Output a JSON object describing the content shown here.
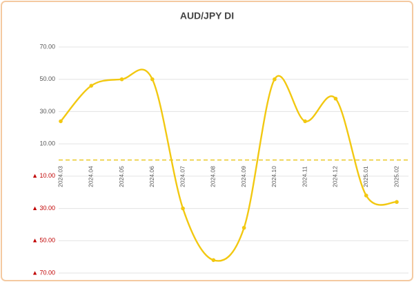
{
  "chart_data": {
    "type": "line",
    "title": "AUD/JPY DI",
    "categories": [
      "2024.03",
      "2024.04",
      "2024.05",
      "2024.06",
      "2024.07",
      "2024.08",
      "2024.09",
      "2024.10",
      "2024.11",
      "2024.12",
      "2025.01",
      "2025.02"
    ],
    "series": [
      {
        "name": "AUD/JPY DI",
        "color": "#f2c811",
        "values": [
          24,
          46,
          50,
          50,
          -30,
          -62,
          -42,
          50,
          24,
          38,
          -22,
          -26
        ]
      }
    ],
    "ylim": [
      -70,
      70
    ],
    "yticks": [
      {
        "value": -70,
        "label": "▲ 70.00"
      },
      {
        "value": -50,
        "label": "▲ 50.00"
      },
      {
        "value": -30,
        "label": "▲ 30.00"
      },
      {
        "value": -10,
        "label": "▲ 10.00"
      },
      {
        "value": 10,
        "label": "10.00"
      },
      {
        "value": 30,
        "label": "30.00"
      },
      {
        "value": 50,
        "label": "50.00"
      },
      {
        "value": 70,
        "label": "70.00"
      }
    ],
    "grid": true,
    "smooth": true,
    "negative_label_color": "#c00000",
    "reference_line": {
      "value": 0,
      "color": "#e8c000",
      "style": "dashed"
    }
  }
}
